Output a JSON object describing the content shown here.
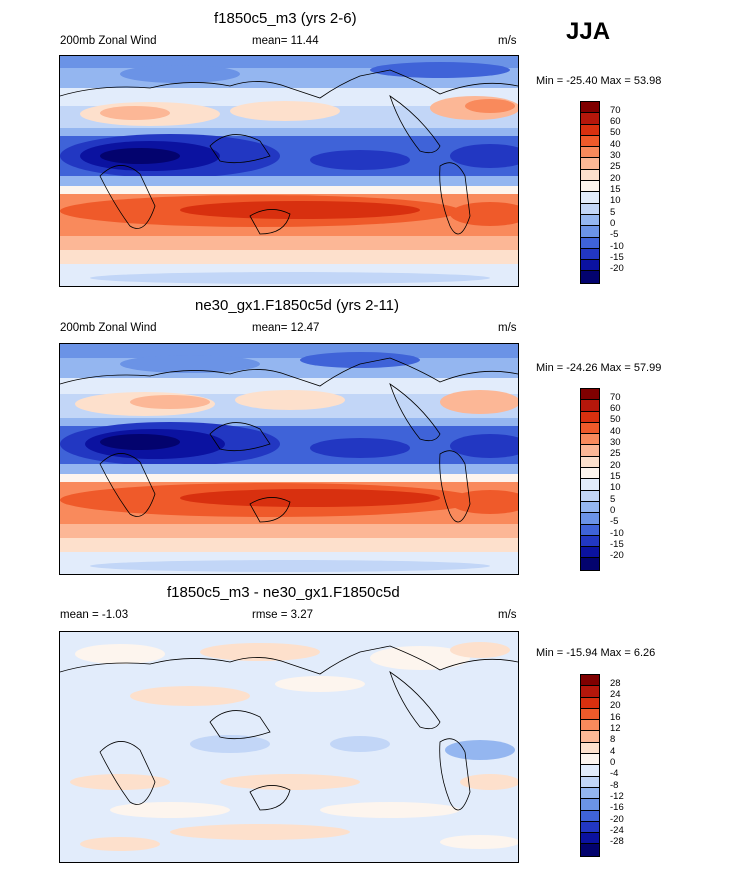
{
  "season": "JJA",
  "colors": {
    "warm": [
      "#7f0000",
      "#b5170b",
      "#d8300f",
      "#ef5a2a",
      "#f98a5c",
      "#fcb796",
      "#fde0cc"
    ],
    "neutral": "#fdf5ee",
    "cool": [
      "#e2ecfb",
      "#c2d6f7",
      "#94b6f0",
      "#6b93e6",
      "#3f63d8",
      "#2237c2",
      "#0b12a0",
      "#03036e"
    ]
  },
  "panels": [
    {
      "title": "f1850c5_m3 (yrs 2-6)",
      "left": "200mb Zonal Wind",
      "center": "mean=  11.44",
      "units": "m/s",
      "minmax": "Min = -25.40 Max =  53.98",
      "colorbar_labels": [
        "70",
        "60",
        "50",
        "40",
        "30",
        "25",
        "20",
        "15",
        "10",
        "5",
        "0",
        "-5",
        "-10",
        "-15",
        "-20"
      ]
    },
    {
      "title": "ne30_gx1.F1850c5d (yrs 2-11)",
      "left": "200mb Zonal Wind",
      "center": "mean=  12.47",
      "units": "m/s",
      "minmax": "Min = -24.26 Max =  57.99",
      "colorbar_labels": [
        "70",
        "60",
        "50",
        "40",
        "30",
        "25",
        "20",
        "15",
        "10",
        "5",
        "0",
        "-5",
        "-10",
        "-15",
        "-20"
      ]
    },
    {
      "title": "f1850c5_m3 - ne30_gx1.F1850c5d",
      "left": "mean =  -1.03",
      "center": "rmse =   3.27",
      "units": "m/s",
      "minmax": "Min = -15.94 Max =   6.26",
      "colorbar_labels": [
        "28",
        "24",
        "20",
        "16",
        "12",
        "8",
        "4",
        "0",
        "-4",
        "-8",
        "-12",
        "-16",
        "-20",
        "-24",
        "-28"
      ]
    }
  ]
}
